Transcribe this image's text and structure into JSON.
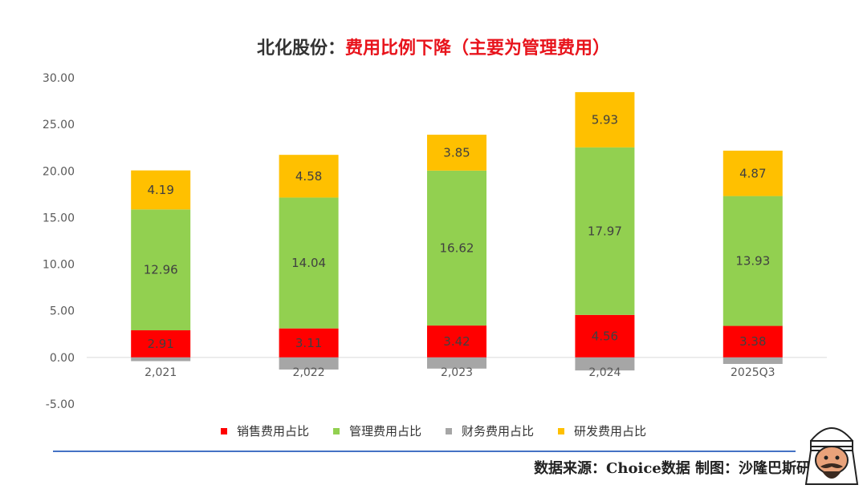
{
  "title": {
    "company": "北化股份：",
    "headline": "费用比例下降（主要为管理费用）"
  },
  "chart_data": {
    "type": "bar",
    "stacked": true,
    "categories": [
      "2,021",
      "2,022",
      "2,023",
      "2,024",
      "2025Q3"
    ],
    "ylim": [
      -5,
      30
    ],
    "yticks": [
      "30.00",
      "25.00",
      "20.00",
      "15.00",
      "10.00",
      "5.00",
      "0.00",
      "-5.00"
    ],
    "series": [
      {
        "name": "销售费用占比",
        "color": "#ff0000",
        "values": [
          2.91,
          3.11,
          3.42,
          4.56,
          3.38
        ],
        "labels": [
          "2.91",
          "3.11",
          "3.42",
          "4.56",
          "3.38"
        ]
      },
      {
        "name": "管理费用占比",
        "color": "#92d050",
        "values": [
          12.96,
          14.04,
          16.62,
          17.97,
          13.93
        ],
        "labels": [
          "12.96",
          "14.04",
          "16.62",
          "17.97",
          "13.93"
        ]
      },
      {
        "name": "财务费用占比",
        "color": "#a6a6a6",
        "values": [
          -0.4,
          -1.3,
          -1.2,
          -1.4,
          -0.7
        ],
        "labels": []
      },
      {
        "name": "研发费用占比",
        "color": "#ffc000",
        "values": [
          4.19,
          4.58,
          3.85,
          5.93,
          4.87
        ],
        "labels": [
          "4.19",
          "4.58",
          "3.85",
          "5.93",
          "4.87"
        ]
      }
    ]
  },
  "source": "数据来源：Choice数据  制图：沙隆巴斯研究"
}
